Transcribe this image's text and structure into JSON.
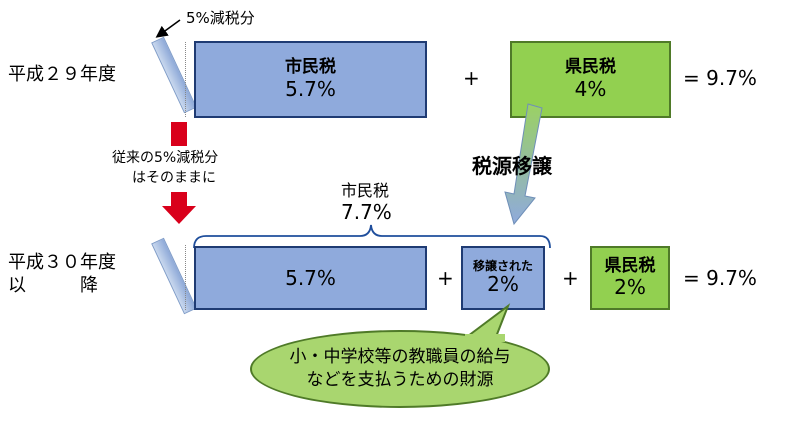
{
  "note_reduction": "5%減税分",
  "row1": {
    "label": "平成２９年度",
    "city_tax": {
      "label": "市民税",
      "value": "5.7%"
    },
    "pref_tax": {
      "label": "県民税",
      "value": "4%"
    },
    "plus": "+",
    "total": "= 9.7%"
  },
  "transition_note": {
    "line1": "従来の5%減税分",
    "line2": "はそのままに"
  },
  "transfer_label": "税源移譲",
  "row2": {
    "label_line1": "平成３０年度",
    "label_line2": "以　　　降",
    "brace_label": {
      "title": "市民税",
      "value": "7.7%"
    },
    "city_tax": {
      "value": "5.7%"
    },
    "transferred": {
      "label": "移譲された",
      "value": "2%"
    },
    "pref_tax": {
      "label": "県民税",
      "value": "2%"
    },
    "plus1": "+",
    "plus2": "+",
    "total": "= 9.7%"
  },
  "bubble": {
    "line1": "小・中学校等の教職員の給与",
    "line2": "などを支払うための財源"
  },
  "colors": {
    "blue": "#8faadc",
    "green": "#92d050",
    "red_arrow": "#d9001b",
    "bubble": "#a9d66f"
  }
}
